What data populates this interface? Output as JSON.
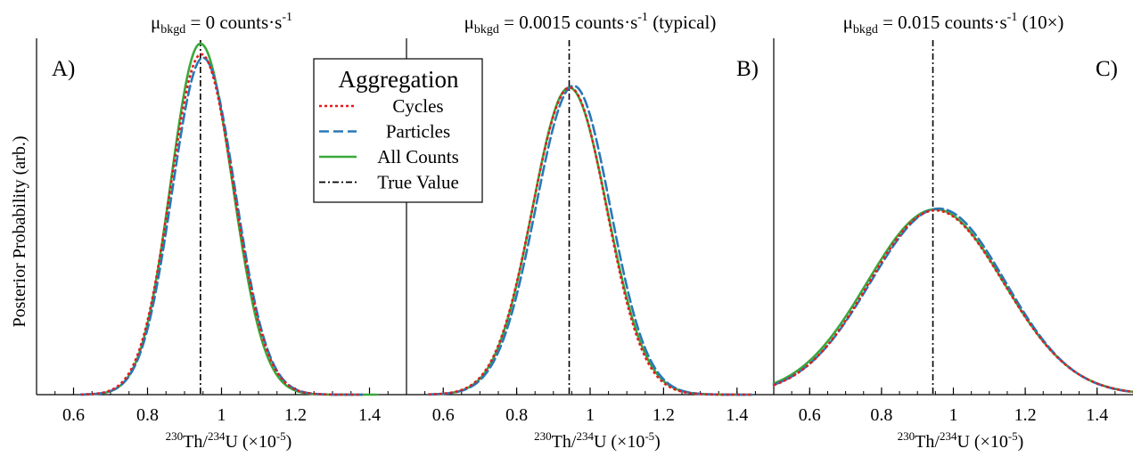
{
  "figure": {
    "ylabel": "Posterior Probability (arb.)"
  },
  "legend": {
    "title": "Aggregation",
    "items": [
      {
        "label": "Cycles",
        "color": "#e8191c",
        "dash": "dotted"
      },
      {
        "label": "Particles",
        "color": "#2878b8",
        "dash": "dashed"
      },
      {
        "label": "All Counts",
        "color": "#3aa83a",
        "dash": "solid"
      },
      {
        "label": "True Value",
        "color": "#000000",
        "dash": "dashdot"
      }
    ]
  },
  "chart_data": [
    {
      "type": "line",
      "panel_label": "A)",
      "title": {
        "prefix": "μ",
        "sub": "bkgd",
        "main": " = 0  counts·s",
        "sup": "-1",
        "suffix": ""
      },
      "xlabel": {
        "sup1": "230",
        "a": "Th/",
        "sup2": "234",
        "b": "U (×10",
        "sup3": "-5",
        "c": ")"
      },
      "xlim": [
        0.5,
        1.5
      ],
      "ylim": [
        0,
        1.0
      ],
      "xticks": [
        0.6,
        0.8,
        1,
        1.2,
        1.4
      ],
      "xtick_labels": [
        "0.6",
        "0.8",
        "1",
        "1.2",
        "1.4"
      ],
      "true_value": 0.943,
      "series": [
        {
          "name": "Cycles",
          "shape": {
            "type": "gauss",
            "mu": 0.945,
            "sigma_l": 0.083,
            "sigma_r": 0.088,
            "amp": 0.97
          },
          "xrange": [
            0.62,
            1.38
          ]
        },
        {
          "name": "Particles",
          "shape": {
            "type": "gauss",
            "mu": 0.95,
            "sigma_l": 0.083,
            "sigma_r": 0.087,
            "amp": 0.96
          },
          "xrange": [
            0.62,
            1.38
          ]
        },
        {
          "name": "All Counts",
          "shape": {
            "type": "gauss",
            "mu": 0.943,
            "sigma_l": 0.08,
            "sigma_r": 0.086,
            "amp": 1.0
          },
          "xrange": [
            0.62,
            1.42
          ]
        }
      ]
    },
    {
      "type": "line",
      "panel_label": "B)",
      "title": {
        "prefix": "μ",
        "sub": "bkgd",
        "main": " = 0.0015 counts·s",
        "sup": "-1",
        "suffix": " (typical)"
      },
      "xlabel": {
        "sup1": "230",
        "a": "Th/",
        "sup2": "234",
        "b": "U (×10",
        "sup3": "-5",
        "c": ")"
      },
      "xlim": [
        0.5,
        1.5
      ],
      "ylim": [
        0,
        1.0
      ],
      "xticks": [
        0.6,
        0.8,
        1,
        1.2,
        1.4
      ],
      "xtick_labels": [
        "0.6",
        "0.8",
        "1",
        "1.2",
        "1.4"
      ],
      "true_value": 0.943,
      "series": [
        {
          "name": "Cycles",
          "shape": {
            "type": "gauss",
            "mu": 0.945,
            "sigma_l": 0.102,
            "sigma_r": 0.1,
            "amp": 0.875
          },
          "xrange": [
            0.56,
            1.44
          ]
        },
        {
          "name": "Particles",
          "shape": {
            "type": "gauss",
            "mu": 0.955,
            "sigma_l": 0.103,
            "sigma_r": 0.1,
            "amp": 0.88
          },
          "xrange": [
            0.56,
            1.44
          ]
        },
        {
          "name": "All Counts",
          "shape": {
            "type": "gauss",
            "mu": 0.943,
            "sigma_l": 0.1,
            "sigma_r": 0.103,
            "amp": 0.875
          },
          "xrange": [
            0.56,
            1.44
          ]
        }
      ]
    },
    {
      "type": "line",
      "panel_label": "C)",
      "title": {
        "prefix": "μ",
        "sub": "bkgd",
        "main": " = 0.015  counts·s",
        "sup": "-1",
        "suffix": " (10×)"
      },
      "xlabel": {
        "sup1": "230",
        "a": "Th/",
        "sup2": "234",
        "b": "U (×10",
        "sup3": "-5",
        "c": ")"
      },
      "xlim": [
        0.5,
        1.5
      ],
      "ylim": [
        0,
        1.0
      ],
      "xticks": [
        0.6,
        0.8,
        1,
        1.2,
        1.4
      ],
      "xtick_labels": [
        "0.6",
        "0.8",
        "1",
        "1.2",
        "1.4"
      ],
      "true_value": 0.943,
      "series": [
        {
          "name": "Cycles",
          "shape": {
            "type": "gauss",
            "mu": 0.95,
            "sigma_l": 0.185,
            "sigma_r": 0.19,
            "amp": 0.525
          },
          "xrange": [
            0.5,
            1.5
          ]
        },
        {
          "name": "Particles",
          "shape": {
            "type": "gauss",
            "mu": 0.96,
            "sigma_l": 0.19,
            "sigma_r": 0.185,
            "amp": 0.53
          },
          "xrange": [
            0.5,
            1.5
          ]
        },
        {
          "name": "All Counts",
          "shape": {
            "type": "gauss",
            "mu": 0.95,
            "sigma_l": 0.19,
            "sigma_r": 0.19,
            "amp": 0.528
          },
          "xrange": [
            0.5,
            1.5
          ]
        }
      ]
    }
  ]
}
